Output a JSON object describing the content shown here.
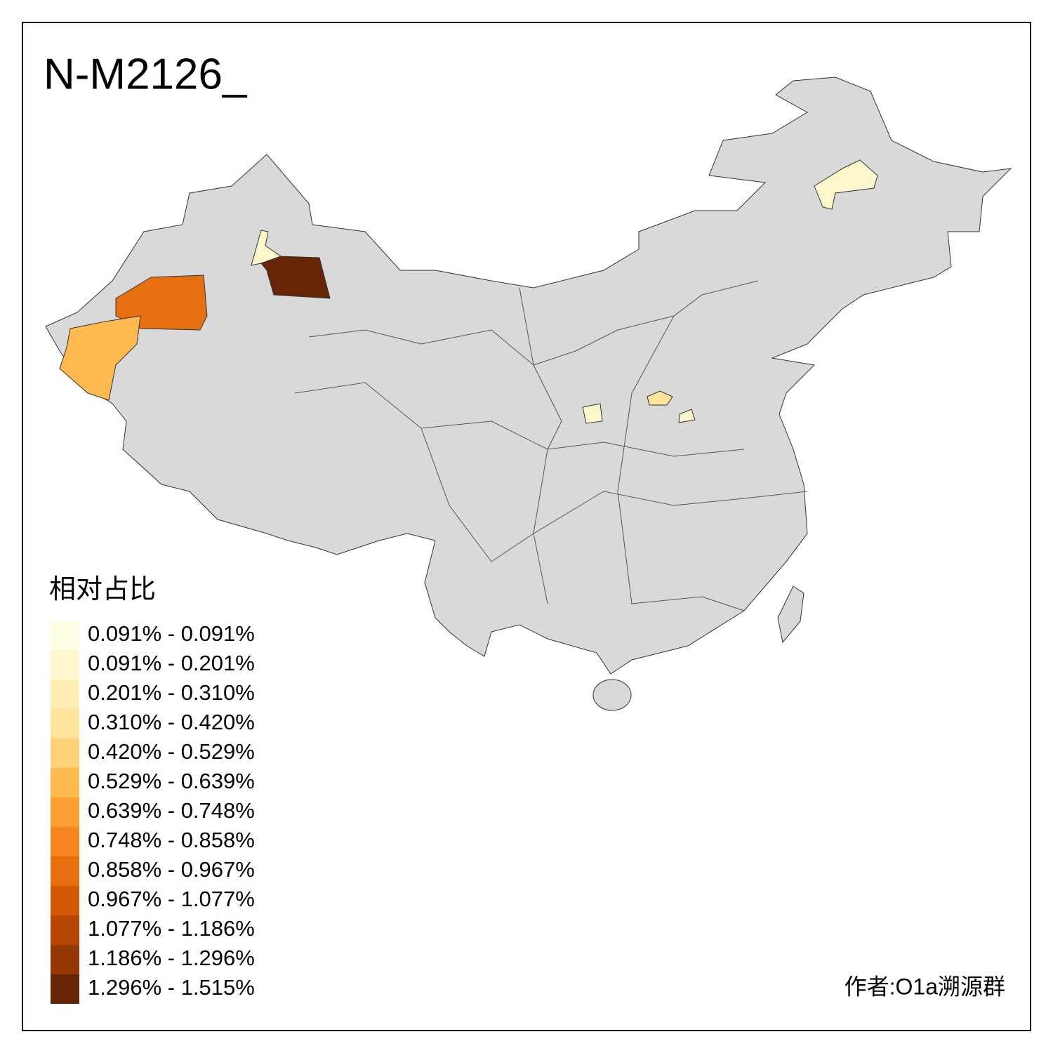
{
  "title": "N-M2126_",
  "legend": {
    "title": "相对占比",
    "items": [
      {
        "label": "0.091% - 0.091%",
        "color": "#FFFFE5"
      },
      {
        "label": "0.091% - 0.201%",
        "color": "#FFF7CC"
      },
      {
        "label": "0.201% - 0.310%",
        "color": "#FFEEB3"
      },
      {
        "label": "0.310% - 0.420%",
        "color": "#FEE39A"
      },
      {
        "label": "0.420% - 0.529%",
        "color": "#FED17A"
      },
      {
        "label": "0.529% - 0.639%",
        "color": "#FEB94F"
      },
      {
        "label": "0.639% - 0.748%",
        "color": "#FE9F33"
      },
      {
        "label": "0.748% - 0.858%",
        "color": "#F6861F"
      },
      {
        "label": "0.858% - 0.967%",
        "color": "#E6700F"
      },
      {
        "label": "0.967% - 1.077%",
        "color": "#D25A06"
      },
      {
        "label": "1.077% - 1.186%",
        "color": "#B74704"
      },
      {
        "label": "1.186% - 1.296%",
        "color": "#953805"
      },
      {
        "label": "1.296% - 1.515%",
        "color": "#662506"
      }
    ]
  },
  "credit": "作者:O1a溯源群"
}
